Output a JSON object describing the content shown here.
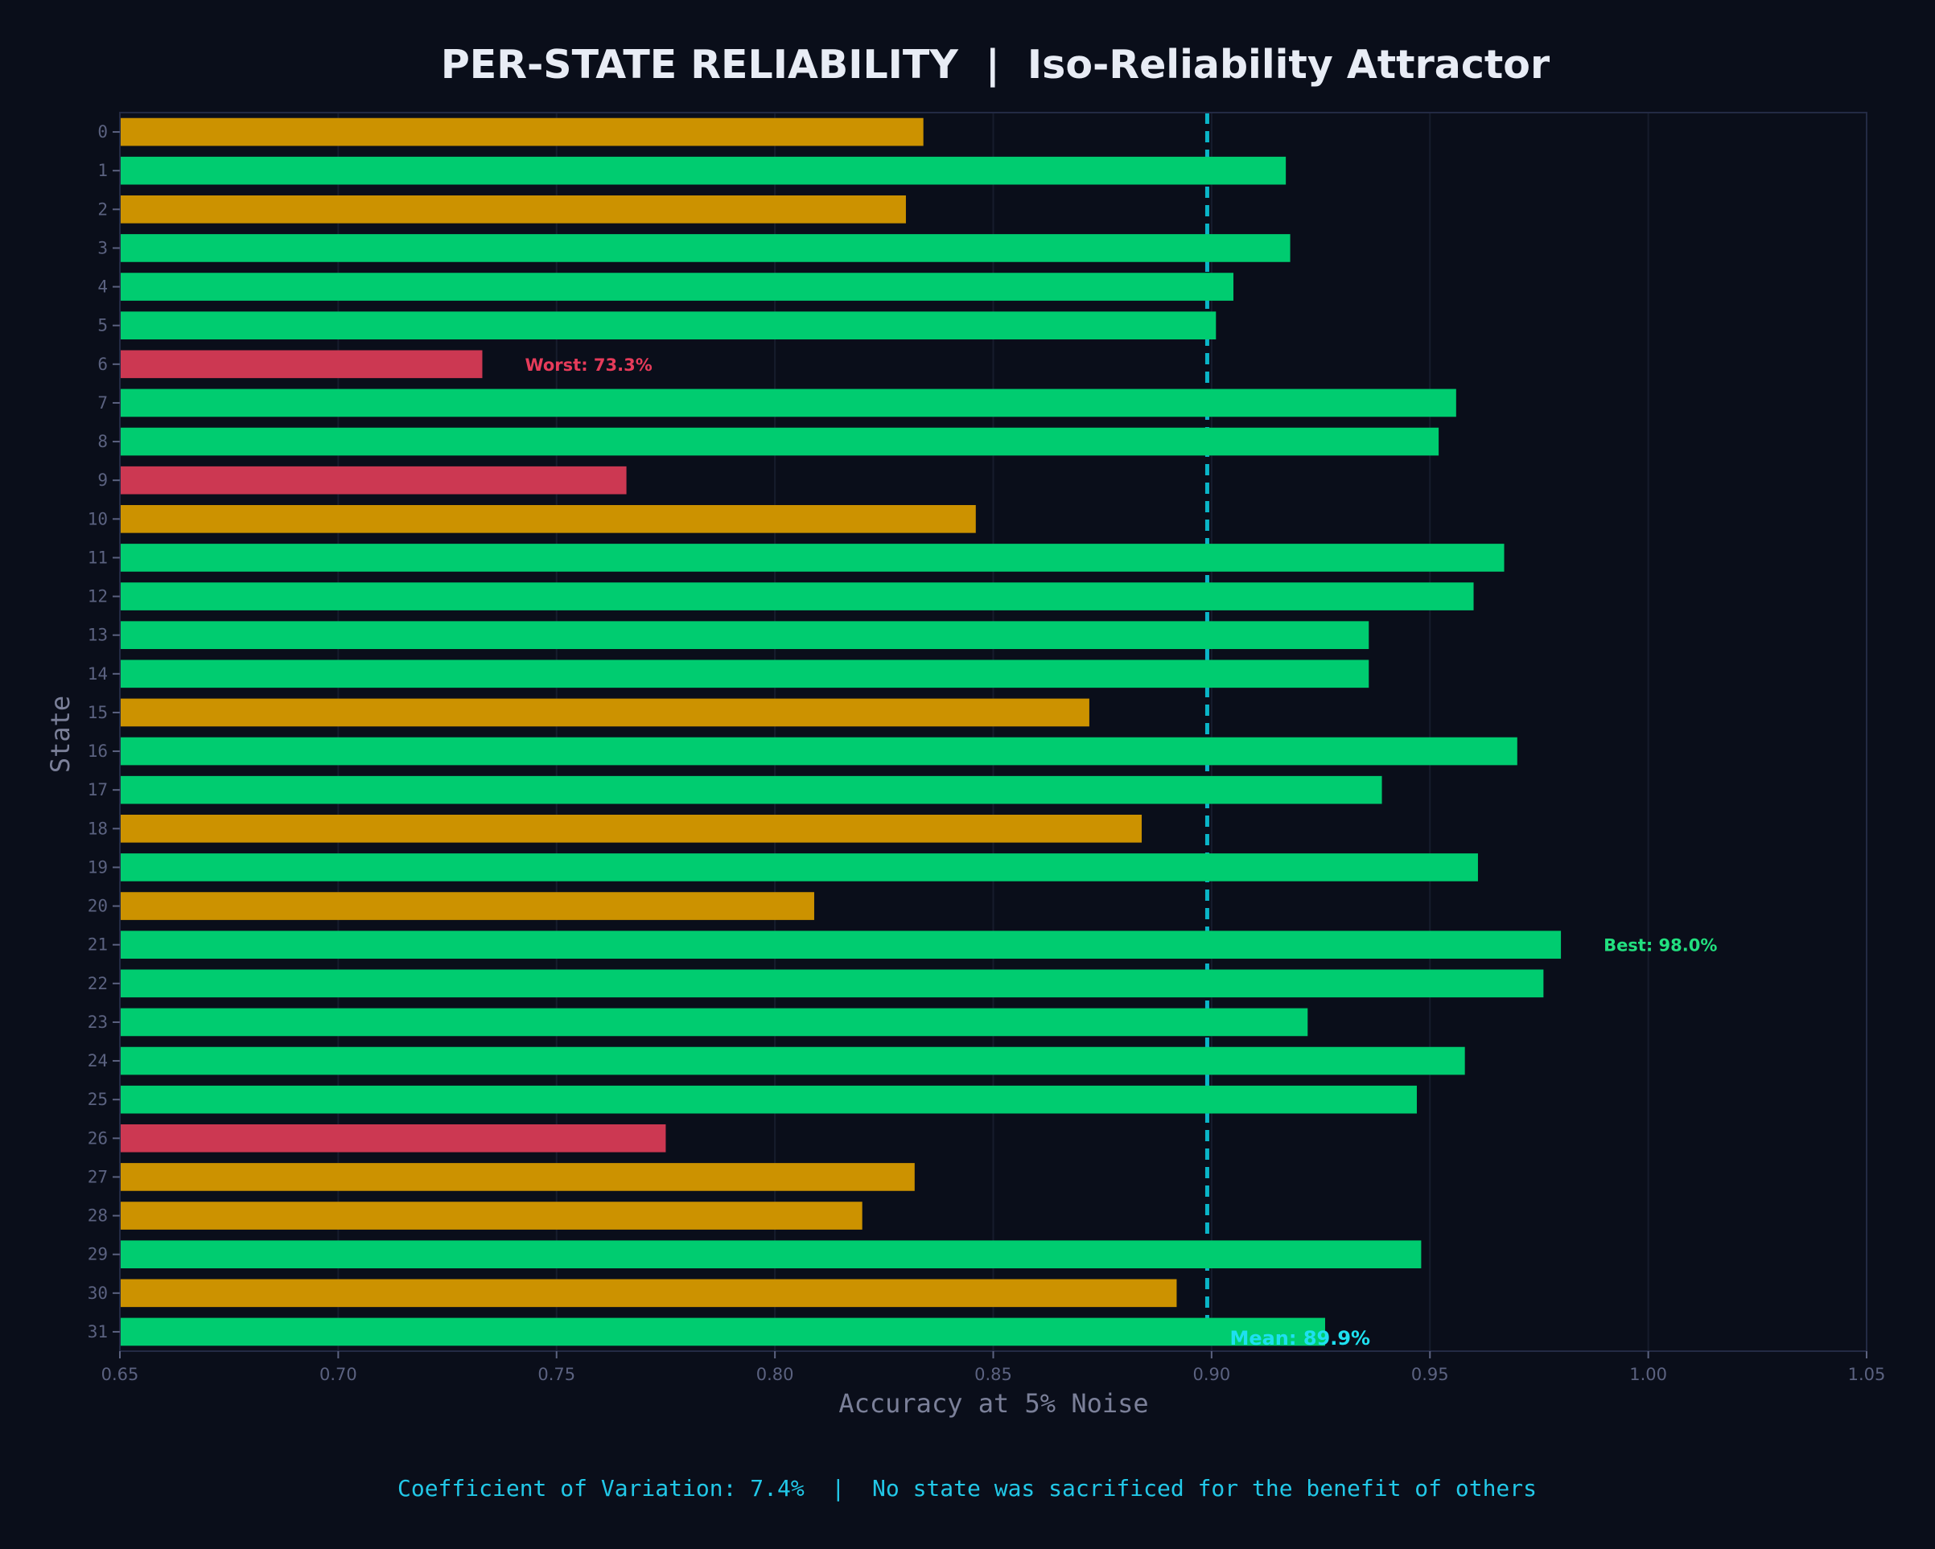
{
  "chart_data": {
    "type": "bar",
    "orientation": "horizontal",
    "title": "PER-STATE RELIABILITY  |  Iso-Reliability Attractor",
    "xlabel": "Accuracy at 5% Noise",
    "ylabel": "State",
    "xlim": [
      0.65,
      1.05
    ],
    "x_ticks": [
      "0.65",
      "0.70",
      "0.75",
      "0.80",
      "0.85",
      "0.90",
      "0.95",
      "1.00",
      "1.05"
    ],
    "grid": "vertical",
    "categories": [
      "0",
      "1",
      "2",
      "3",
      "4",
      "5",
      "6",
      "7",
      "8",
      "9",
      "10",
      "11",
      "12",
      "13",
      "14",
      "15",
      "16",
      "17",
      "18",
      "19",
      "20",
      "21",
      "22",
      "23",
      "24",
      "25",
      "26",
      "27",
      "28",
      "29",
      "30",
      "31"
    ],
    "values": [
      0.834,
      0.917,
      0.83,
      0.918,
      0.905,
      0.901,
      0.733,
      0.956,
      0.952,
      0.766,
      0.846,
      0.967,
      0.96,
      0.936,
      0.936,
      0.872,
      0.97,
      0.939,
      0.884,
      0.961,
      0.809,
      0.98,
      0.976,
      0.922,
      0.958,
      0.947,
      0.775,
      0.832,
      0.82,
      0.948,
      0.892,
      0.926
    ],
    "bar_colors": [
      "#cc9200",
      "#00cc70",
      "#cc9200",
      "#00cc70",
      "#00cc70",
      "#00cc70",
      "#cc3852",
      "#00cc70",
      "#00cc70",
      "#cc3852",
      "#cc9200",
      "#00cc70",
      "#00cc70",
      "#00cc70",
      "#00cc70",
      "#cc9200",
      "#00cc70",
      "#00cc70",
      "#cc9200",
      "#00cc70",
      "#cc9200",
      "#00cc70",
      "#00cc70",
      "#00cc70",
      "#00cc70",
      "#00cc70",
      "#cc3852",
      "#cc9200",
      "#cc9200",
      "#00cc70",
      "#cc9200",
      "#00cc70"
    ],
    "mean_line": {
      "value": 0.899,
      "label": "Mean: 89.9%",
      "color": "#0ab5c8"
    },
    "annotations": [
      {
        "label": "Worst: 73.3%",
        "state_index": 6,
        "color": "#e63b5a"
      },
      {
        "label": "Best: 98.0%",
        "state_index": 21,
        "color": "#22e07f"
      }
    ],
    "footer": "Coefficient of Variation: 7.4%  |  No state was sacrificed for the benefit of others",
    "colors": {
      "background": "#0a0e1a",
      "plot_frame": "#232a44",
      "grid": "#161c2c",
      "tick_text": "#5b6280",
      "axis_label": "#7b8099",
      "title": "#e8ecf5",
      "footer": "#22c8e8"
    }
  }
}
